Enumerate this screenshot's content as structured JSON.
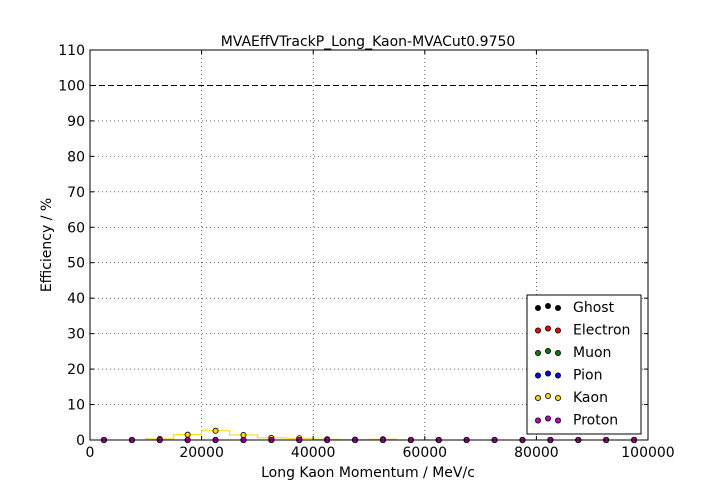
{
  "chart_data": {
    "type": "scatter",
    "title": "MVAEffVTrackP_Long_Kaon-MVACut0.9750",
    "xlabel": "Long Kaon Momentum / MeV/c",
    "ylabel": "Efficiency / %",
    "xlim": [
      0,
      100000
    ],
    "ylim": [
      0,
      110
    ],
    "xticks": [
      0,
      20000,
      40000,
      60000,
      80000,
      100000
    ],
    "yticks": [
      0,
      10,
      20,
      30,
      40,
      50,
      60,
      70,
      80,
      90,
      100,
      110
    ],
    "grid": true,
    "reference_line": 100,
    "legend_position": "lower-right",
    "x": [
      2500,
      7500,
      12500,
      17500,
      22500,
      27500,
      32500,
      37500,
      42500,
      47500,
      52500,
      57500,
      62500,
      67500,
      72500,
      77500,
      82500,
      87500,
      92500,
      97500
    ],
    "series": [
      {
        "name": "Ghost",
        "color": "#000000",
        "values": [
          0,
          0,
          0,
          0,
          0,
          0,
          0,
          0,
          0,
          0,
          0,
          0,
          0,
          0,
          0,
          0,
          0,
          0,
          0,
          0
        ]
      },
      {
        "name": "Electron",
        "color": "#ff0000",
        "values": [
          0,
          0,
          0,
          0,
          0,
          0,
          0,
          0,
          0,
          0,
          0,
          0,
          0,
          0,
          0,
          0,
          0,
          0,
          0,
          0
        ]
      },
      {
        "name": "Muon",
        "color": "#008000",
        "values": [
          0,
          0,
          0,
          0,
          0,
          0,
          0,
          0,
          0,
          0,
          0,
          0,
          0,
          0,
          0,
          0,
          0,
          0,
          0,
          0
        ]
      },
      {
        "name": "Pion",
        "color": "#0000ff",
        "values": [
          0,
          0,
          0,
          0,
          0,
          0,
          0,
          0,
          0,
          0,
          0,
          0,
          0,
          0,
          0,
          0,
          0,
          0,
          0,
          0
        ]
      },
      {
        "name": "Kaon",
        "color": "#ffd700",
        "values": [
          0,
          0,
          0.3,
          1.5,
          2.6,
          1.4,
          0.6,
          0.5,
          0.2,
          0.1,
          0.2,
          0,
          0,
          0,
          0,
          0,
          0,
          0,
          0,
          0
        ]
      },
      {
        "name": "Proton",
        "color": "#c000c0",
        "values": [
          0,
          0,
          0,
          0,
          0,
          0,
          0,
          0,
          0,
          0,
          0,
          0,
          0,
          0,
          0,
          0,
          0,
          0,
          0,
          0
        ]
      }
    ]
  }
}
